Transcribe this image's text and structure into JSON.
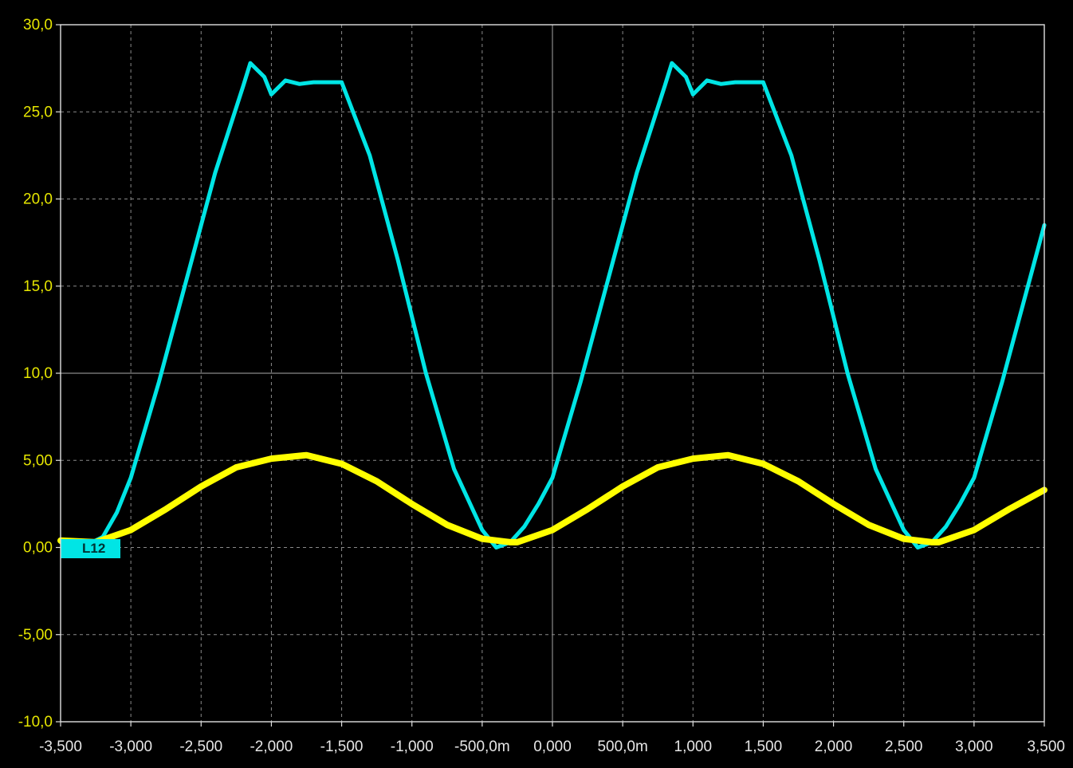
{
  "chart_data": {
    "type": "line",
    "title": "",
    "xlabel": "",
    "ylabel": "",
    "xlim": [
      -3.5,
      3.5
    ],
    "ylim": [
      -10,
      30
    ],
    "grid": true,
    "x_tick_labels": [
      "-3,500",
      "-3,000",
      "-2,500",
      "-2,000",
      "-1,500",
      "-1,000",
      "-500,0m",
      "0,000",
      "500,0m",
      "1,000",
      "1,500",
      "2,000",
      "2,500",
      "3,000",
      "3,500"
    ],
    "x_tick_values": [
      -3.5,
      -3.0,
      -2.5,
      -2.0,
      -1.5,
      -1.0,
      -0.5,
      0.0,
      0.5,
      1.0,
      1.5,
      2.0,
      2.5,
      3.0,
      3.5
    ],
    "y_tick_labels": [
      "30,0",
      "25,0",
      "20,0",
      "15,0",
      "10,0",
      "5,00",
      "0,00",
      "-5,00",
      "-10,0"
    ],
    "y_tick_values": [
      30,
      25,
      20,
      15,
      10,
      5,
      0,
      -5,
      -10
    ],
    "series": [
      {
        "color": "#00e5e5",
        "x": [
          -3.5,
          -3.4,
          -3.3,
          -3.2,
          -3.1,
          -3.0,
          -2.8,
          -2.6,
          -2.4,
          -2.2,
          -2.15,
          -2.05,
          -2.0,
          -1.9,
          -1.8,
          -1.7,
          -1.6,
          -1.5,
          -1.3,
          -1.1,
          -0.9,
          -0.7,
          -0.5,
          -0.4,
          -0.3,
          -0.2,
          -0.1,
          0.0,
          0.2,
          0.4,
          0.6,
          0.8,
          0.85,
          0.95,
          1.0,
          1.1,
          1.2,
          1.3,
          1.4,
          1.5,
          1.7,
          1.9,
          2.1,
          2.3,
          2.5,
          2.6,
          2.7,
          2.8,
          2.9,
          3.0,
          3.2,
          3.4,
          3.5
        ],
        "y": [
          0.3,
          0.1,
          0.2,
          0.6,
          2.0,
          4.0,
          9.5,
          15.5,
          21.5,
          26.5,
          27.8,
          27.0,
          26.0,
          26.8,
          26.6,
          26.7,
          26.7,
          26.7,
          22.5,
          16.5,
          10.0,
          4.5,
          1.0,
          0.0,
          0.3,
          1.2,
          2.5,
          4.0,
          9.5,
          15.5,
          21.5,
          26.5,
          27.8,
          27.0,
          26.0,
          26.8,
          26.6,
          26.7,
          26.7,
          26.7,
          22.5,
          16.5,
          10.0,
          4.5,
          1.0,
          0.0,
          0.3,
          1.2,
          2.5,
          4.0,
          9.5,
          15.5,
          18.5
        ]
      },
      {
        "color": "#ffff00",
        "x": [
          -3.5,
          -3.25,
          -3.0,
          -2.75,
          -2.5,
          -2.25,
          -2.0,
          -1.75,
          -1.5,
          -1.25,
          -1.0,
          -0.75,
          -0.5,
          -0.3,
          -0.25,
          0.0,
          0.25,
          0.5,
          0.75,
          1.0,
          1.25,
          1.5,
          1.75,
          2.0,
          2.25,
          2.5,
          2.7,
          2.75,
          3.0,
          3.25,
          3.5
        ],
        "y": [
          0.4,
          0.3,
          1.0,
          2.2,
          3.5,
          4.6,
          5.1,
          5.3,
          4.8,
          3.8,
          2.5,
          1.3,
          0.5,
          0.3,
          0.3,
          1.0,
          2.2,
          3.5,
          4.6,
          5.1,
          5.3,
          4.8,
          3.8,
          2.5,
          1.3,
          0.5,
          0.3,
          0.3,
          1.0,
          2.2,
          3.3
        ]
      }
    ]
  },
  "cursor_marker": {
    "label": "L12",
    "color": "#00e5e5"
  }
}
